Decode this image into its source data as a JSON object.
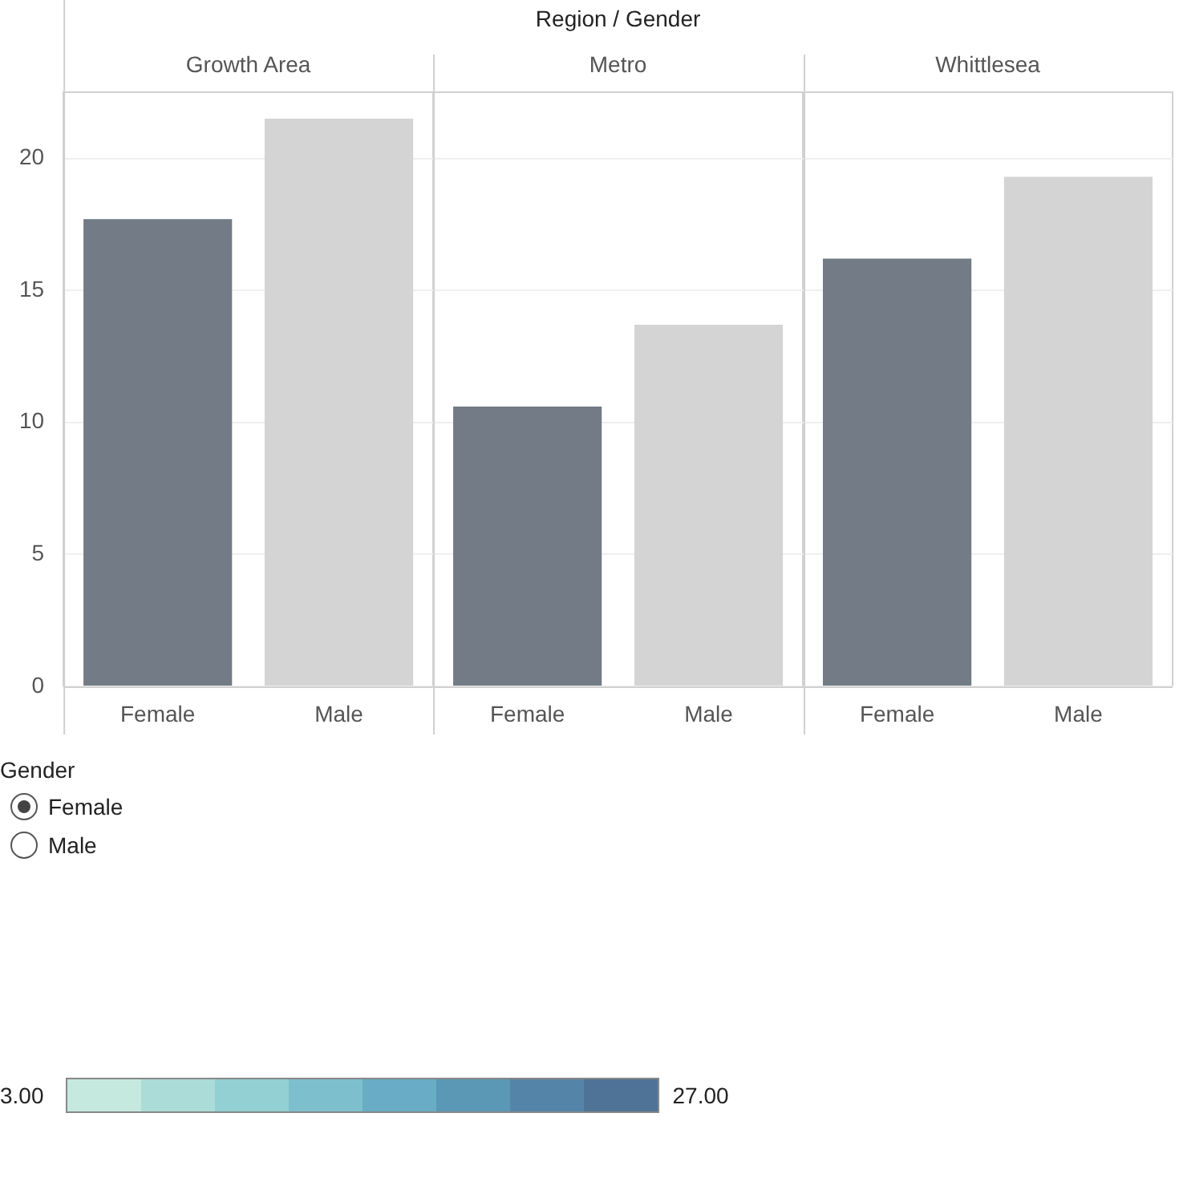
{
  "chart_data": [
    {
      "type": "bar",
      "xlabel": "Region / Gender",
      "categories": [
        "Growth Area",
        "Metro",
        "Whittlesea"
      ],
      "series": [
        {
          "name": "Female",
          "color": "#737b86",
          "values": [
            17.7,
            10.6,
            16.2
          ]
        },
        {
          "name": "Male",
          "color": "#d4d4d4",
          "values": [
            21.5,
            13.7,
            19.3
          ]
        }
      ],
      "ylim": [
        0,
        22.5
      ],
      "yticks": [
        0,
        5,
        10,
        15,
        20
      ],
      "grid": "y",
      "legend": "bottom left",
      "legend_title": "Gender"
    },
    {
      "type": "other",
      "annotations": [
        "3.00",
        "27.00"
      ]
    }
  ]
}
